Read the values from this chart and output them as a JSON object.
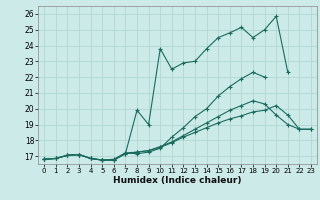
{
  "xlabel": "Humidex (Indice chaleur)",
  "background_color": "#cceae7",
  "grid_color": "#aad4d0",
  "line_color": "#1a6b5e",
  "xlim": [
    -0.5,
    23.5
  ],
  "ylim": [
    16.5,
    26.5
  ],
  "xticks": [
    0,
    1,
    2,
    3,
    4,
    5,
    6,
    7,
    8,
    9,
    10,
    11,
    12,
    13,
    14,
    15,
    16,
    17,
    18,
    19,
    20,
    21,
    22,
    23
  ],
  "yticks": [
    17,
    18,
    19,
    20,
    21,
    22,
    23,
    24,
    25,
    26
  ],
  "lines": [
    {
      "x": [
        0,
        1,
        2,
        3,
        4,
        5,
        6,
        7,
        8,
        9,
        10,
        11,
        12,
        13,
        14,
        15,
        16,
        17,
        18,
        19,
        20,
        21,
        22,
        23
      ],
      "y": [
        16.8,
        16.85,
        17.05,
        17.1,
        16.85,
        16.75,
        16.75,
        17.15,
        19.9,
        19.0,
        23.8,
        22.5,
        22.9,
        23.0,
        23.8,
        24.5,
        24.8,
        25.15,
        24.5,
        25.0,
        25.85,
        22.3,
        null,
        null
      ]
    },
    {
      "x": [
        0,
        1,
        2,
        3,
        4,
        5,
        6,
        7,
        8,
        9,
        10,
        11,
        12,
        13,
        14,
        15,
        16,
        17,
        18,
        19,
        20,
        21,
        22,
        23
      ],
      "y": [
        16.8,
        16.85,
        17.05,
        17.1,
        16.85,
        16.75,
        16.75,
        17.2,
        17.15,
        17.25,
        17.5,
        18.2,
        18.8,
        19.5,
        20.0,
        20.8,
        21.4,
        21.9,
        22.3,
        22.0,
        null,
        null,
        null,
        null
      ]
    },
    {
      "x": [
        0,
        1,
        2,
        3,
        4,
        5,
        6,
        7,
        8,
        9,
        10,
        11,
        12,
        13,
        14,
        15,
        16,
        17,
        18,
        19,
        20,
        21,
        22,
        23
      ],
      "y": [
        16.8,
        16.85,
        17.05,
        17.1,
        16.85,
        16.75,
        16.8,
        17.2,
        17.25,
        17.35,
        17.6,
        17.9,
        18.3,
        18.7,
        19.1,
        19.5,
        19.9,
        20.2,
        20.5,
        20.3,
        19.6,
        19.0,
        18.7,
        18.7
      ]
    },
    {
      "x": [
        0,
        1,
        2,
        3,
        4,
        5,
        6,
        7,
        8,
        9,
        10,
        11,
        12,
        13,
        14,
        15,
        16,
        17,
        18,
        19,
        20,
        21,
        22,
        23
      ],
      "y": [
        16.8,
        16.85,
        17.05,
        17.1,
        16.85,
        16.75,
        16.75,
        17.15,
        17.25,
        17.35,
        17.55,
        17.85,
        18.2,
        18.5,
        18.8,
        19.1,
        19.35,
        19.55,
        19.8,
        19.9,
        20.2,
        19.6,
        18.7,
        18.7
      ]
    }
  ]
}
